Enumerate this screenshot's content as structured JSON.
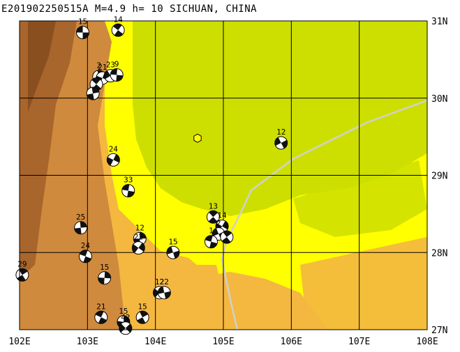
{
  "title": "E201902250515A M=4.9 h= 10 SICHUAN, CHINA",
  "map": {
    "lon_min": 102,
    "lon_max": 108,
    "lat_min": 27,
    "lat_max": 31,
    "x_ticks": [
      "102E",
      "103E",
      "104E",
      "105E",
      "106E",
      "107E",
      "108E"
    ],
    "y_ticks": [
      "31N",
      "30N",
      "29N",
      "28N",
      "27N"
    ],
    "colors": {
      "lowland": "#cddf00",
      "plain": "#ffff00",
      "hills": "#f4b740",
      "mountains": "#cf8a3d",
      "highlands": "#a8652c",
      "border": "#d0d0d0",
      "grid": "#000000"
    }
  },
  "epicenter": {
    "lon": 104.62,
    "lat": 29.48
  },
  "mechanisms": [
    {
      "lon": 102.93,
      "lat": 30.85,
      "label": "15"
    },
    {
      "lon": 103.45,
      "lat": 30.88,
      "label": "14"
    },
    {
      "lon": 103.17,
      "lat": 30.28,
      "label": "2"
    },
    {
      "lon": 103.22,
      "lat": 30.26,
      "label": "21"
    },
    {
      "lon": 103.34,
      "lat": 30.29,
      "label": "23"
    },
    {
      "lon": 103.43,
      "lat": 30.3,
      "label": "9"
    },
    {
      "lon": 103.13,
      "lat": 30.18,
      "label": ""
    },
    {
      "lon": 103.08,
      "lat": 30.06,
      "label": ""
    },
    {
      "lon": 103.38,
      "lat": 29.2,
      "label": "24"
    },
    {
      "lon": 105.85,
      "lat": 29.42,
      "label": "12"
    },
    {
      "lon": 103.6,
      "lat": 28.8,
      "label": "33"
    },
    {
      "lon": 104.85,
      "lat": 28.46,
      "label": "13"
    },
    {
      "lon": 102.9,
      "lat": 28.32,
      "label": "25"
    },
    {
      "lon": 104.98,
      "lat": 28.34,
      "label": "14"
    },
    {
      "lon": 104.93,
      "lat": 28.24,
      "label": "2"
    },
    {
      "lon": 104.82,
      "lat": 28.14,
      "label": "1"
    },
    {
      "lon": 105.05,
      "lat": 28.2,
      "label": "4"
    },
    {
      "lon": 103.77,
      "lat": 28.18,
      "label": "12"
    },
    {
      "lon": 103.75,
      "lat": 28.06,
      "label": "22"
    },
    {
      "lon": 104.26,
      "lat": 28.0,
      "label": "15"
    },
    {
      "lon": 102.97,
      "lat": 27.95,
      "label": "24"
    },
    {
      "lon": 102.04,
      "lat": 27.71,
      "label": "29"
    },
    {
      "lon": 103.25,
      "lat": 27.67,
      "label": "15"
    },
    {
      "lon": 104.06,
      "lat": 27.48,
      "label": "12"
    },
    {
      "lon": 104.13,
      "lat": 27.48,
      "label": "22"
    },
    {
      "lon": 103.2,
      "lat": 27.16,
      "label": "21"
    },
    {
      "lon": 103.81,
      "lat": 27.16,
      "label": "15"
    },
    {
      "lon": 103.53,
      "lat": 27.1,
      "label": "15"
    },
    {
      "lon": 103.56,
      "lat": 27.02,
      "label": "42"
    }
  ]
}
